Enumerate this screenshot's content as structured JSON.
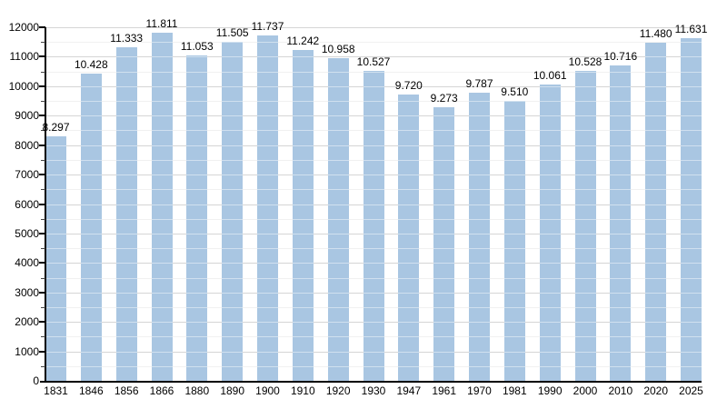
{
  "chart_data": {
    "type": "bar",
    "title": "",
    "xlabel": "",
    "ylabel": "",
    "categories": [
      "1831",
      "1846",
      "1856",
      "1866",
      "1880",
      "1890",
      "1900",
      "1910",
      "1920",
      "1930",
      "1947",
      "1961",
      "1970",
      "1981",
      "1990",
      "2000",
      "2010",
      "2020",
      "2025"
    ],
    "values": [
      8297,
      10428,
      11333,
      11811,
      11053,
      11505,
      11737,
      11242,
      10958,
      10527,
      9720,
      9273,
      9787,
      9510,
      10061,
      10528,
      10716,
      11480,
      11631
    ],
    "value_labels": [
      "8.297",
      "10.428",
      "11.333",
      "11.811",
      "11.053",
      "11.505",
      "11.737",
      "11.242",
      "10.958",
      "10.527",
      "9.720",
      "9.273",
      "9.787",
      "9.510",
      "10.061",
      "10.528",
      "10.716",
      "11.480",
      "11.631"
    ],
    "yticks": [
      "0",
      "1000",
      "2000",
      "3000",
      "4000",
      "5000",
      "6000",
      "7000",
      "8000",
      "9000",
      "10000",
      "11000",
      "12000"
    ],
    "ylim": [
      0,
      12000
    ],
    "major_tick_interval": 1000,
    "minor_tick_interval": 500,
    "grid": true,
    "legend": null,
    "colors": {
      "bar_fill": "#a9c6e2",
      "gridline_major": "#b2b2b2",
      "gridline_minor": "#e6e6e6",
      "axis": "#000000",
      "text": "#000000",
      "background": "#ffffff"
    }
  }
}
